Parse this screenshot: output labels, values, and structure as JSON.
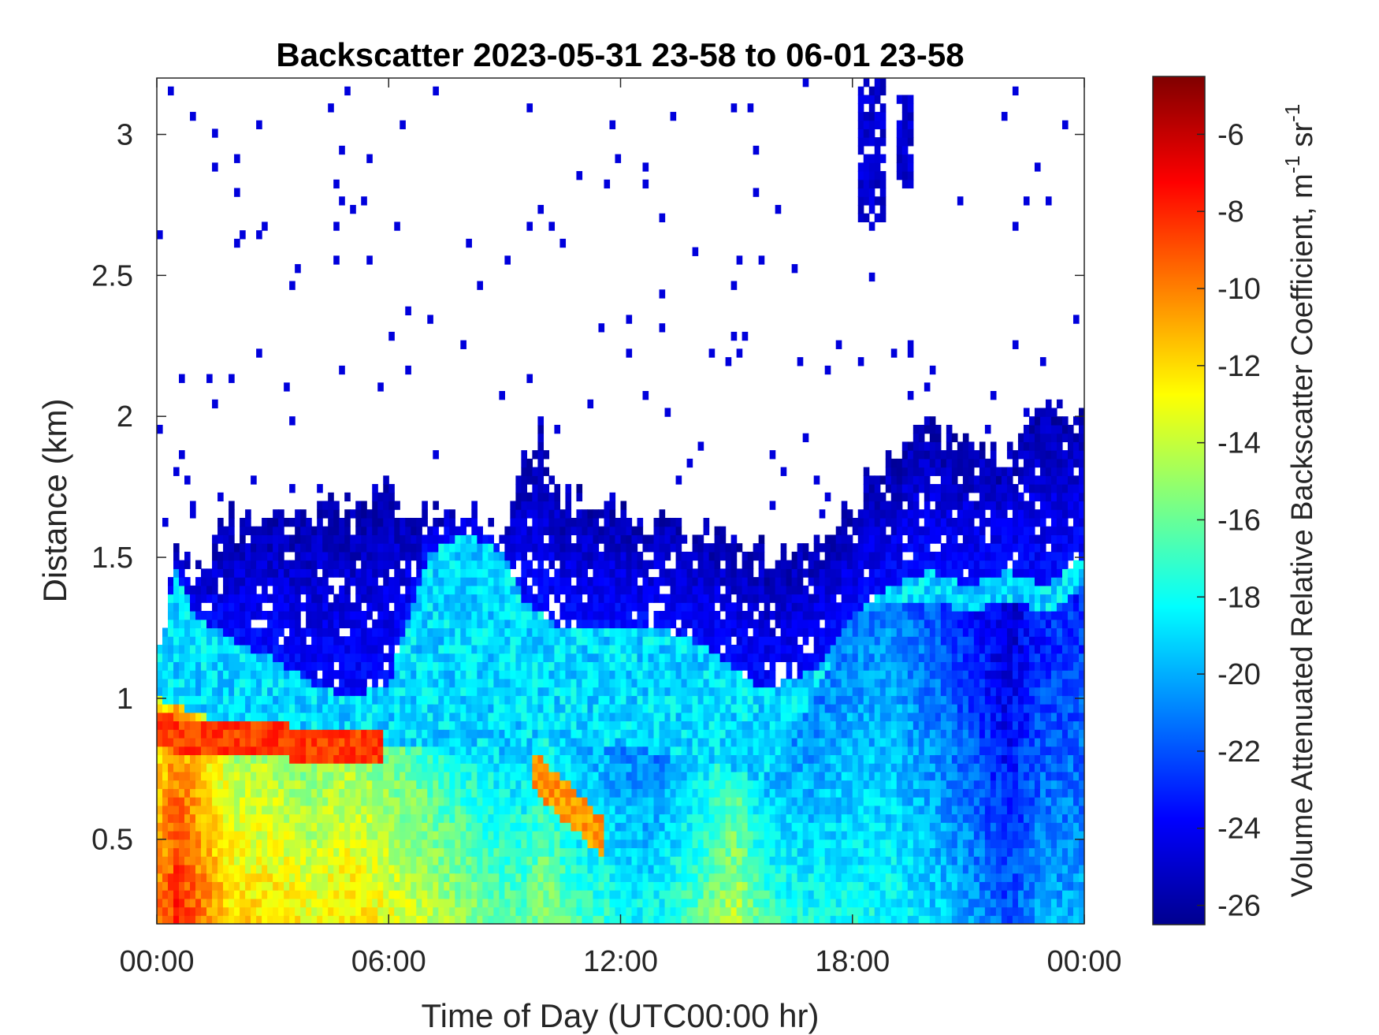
{
  "chart_data": {
    "type": "heatmap",
    "title": "Backscatter 2023-05-31 23-58 to 06-01 23-58",
    "xlabel": "Time of Day (UTC00:00 hr)",
    "ylabel": "Distance (km)",
    "xlim": [
      0,
      24
    ],
    "ylim": [
      0.2,
      3.2
    ],
    "x_ticks": [
      {
        "value": 0,
        "label": "00:00"
      },
      {
        "value": 6,
        "label": "06:00"
      },
      {
        "value": 12,
        "label": "12:00"
      },
      {
        "value": 18,
        "label": "18:00"
      },
      {
        "value": 24,
        "label": "00:00"
      }
    ],
    "y_ticks": [
      {
        "value": 0.5,
        "label": "0.5"
      },
      {
        "value": 1,
        "label": "1"
      },
      {
        "value": 1.5,
        "label": "1.5"
      },
      {
        "value": 2,
        "label": "2"
      },
      {
        "value": 2.5,
        "label": "2.5"
      },
      {
        "value": 3,
        "label": "3"
      }
    ],
    "colorbar": {
      "label_main": "Volume Attenuated Relative Backscatter Coefficient, m",
      "label_exp1": "-1",
      "label_mid": " sr",
      "label_exp2": "-1",
      "range": [
        -26.5,
        -4.5
      ],
      "ticks": [
        -26,
        -24,
        -22,
        -20,
        -18,
        -16,
        -14,
        -12,
        -10,
        -8,
        -6
      ],
      "colormap": "jet"
    },
    "grid": false,
    "hours": [
      0,
      0.5,
      1,
      2,
      3,
      4,
      5,
      6,
      7,
      8,
      9,
      9.5,
      10,
      10.5,
      11,
      11.5,
      12,
      13,
      14,
      15,
      15.5,
      16,
      17,
      18,
      19,
      20,
      21,
      22,
      23,
      24
    ],
    "signal_top_km": [
      1.12,
      1.5,
      1.45,
      1.65,
      1.62,
      1.65,
      1.7,
      1.75,
      1.65,
      1.67,
      1.6,
      1.85,
      1.95,
      1.7,
      1.7,
      1.72,
      1.65,
      1.62,
      1.6,
      1.6,
      1.55,
      1.5,
      1.55,
      1.7,
      1.85,
      1.95,
      1.92,
      1.85,
      2.0,
      2.05
    ],
    "boundary_layer_top_km": [
      1.0,
      0.98,
      0.95,
      0.9,
      0.88,
      0.88,
      0.86,
      0.84,
      0.82,
      0.8,
      0.78,
      0.8,
      0.85,
      0.85,
      0.82,
      0.82,
      0.85,
      0.8,
      0.78,
      0.75,
      0.7,
      0.75,
      1.0,
      1.3,
      1.35,
      1.35,
      1.3,
      1.35,
      1.3,
      1.4
    ],
    "aerosol_layer_top_km": [
      1.15,
      1.45,
      1.3,
      1.2,
      1.15,
      1.05,
      1.0,
      1.05,
      1.5,
      1.6,
      1.5,
      1.35,
      1.3,
      1.25,
      1.25,
      1.25,
      1.25,
      1.25,
      1.2,
      1.1,
      1.05,
      1.05,
      1.1,
      1.3,
      1.4,
      1.45,
      1.4,
      1.45,
      1.4,
      1.5
    ],
    "near_surface_value": [
      -10,
      -8,
      -9,
      -12,
      -12,
      -13,
      -12,
      -13,
      -14,
      -15,
      -16,
      -16,
      -15,
      -16,
      -17,
      -17,
      -18,
      -18,
      -16,
      -14,
      -16,
      -17,
      -18,
      -18,
      -18,
      -19,
      -20,
      -22,
      -20,
      -20
    ],
    "residual_layer": {
      "x_start": 0,
      "x_end": 5.8,
      "center_km": [
        0.88,
        0.82
      ],
      "value": -8.5
    },
    "plume": {
      "x_start": 9.7,
      "x_end": 11.6,
      "center_km": [
        0.75,
        0.5
      ],
      "value": -10.5
    },
    "clouds": [
      {
        "x_start": 18.2,
        "x_end": 18.8,
        "bottom_km": 2.7,
        "top_km": 3.2,
        "value": -24
      },
      {
        "x_start": 19.1,
        "x_end": 19.6,
        "bottom_km": 2.8,
        "top_km": 3.15,
        "value": -24
      }
    ]
  }
}
